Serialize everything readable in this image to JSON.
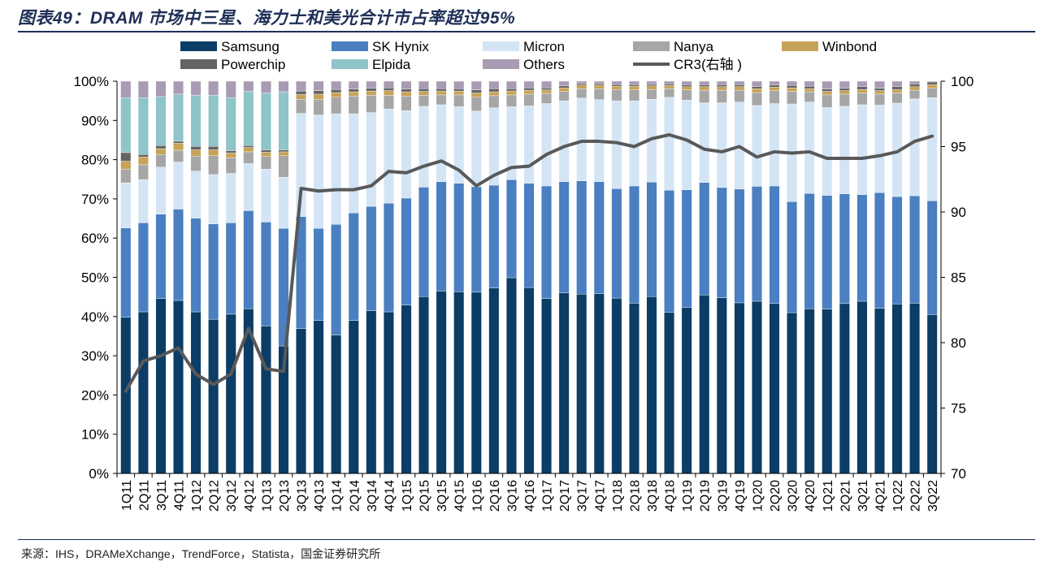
{
  "title": "图表49：DRAM 市场中三星、海力士和美光合计市占率超过95%",
  "source": "来源：IHS，DRAMeXchange，TrendForce，Statista，国金证券研究所",
  "colors": {
    "Samsung": "#0b3d66",
    "SK Hynix": "#4a7fc1",
    "Micron": "#d3e5f5",
    "Nanya": "#a6a6a6",
    "Winbond": "#c7a357",
    "Powerchip": "#646464",
    "Elpida": "#8fc4c8",
    "Others": "#a99bb3",
    "CR3": "#595959"
  },
  "chart_data": {
    "type": "bar",
    "stacked": true,
    "categories": [
      "1Q11",
      "2Q11",
      "3Q11",
      "4Q11",
      "1Q12",
      "2Q12",
      "3Q12",
      "4Q12",
      "1Q13",
      "2Q13",
      "3Q13",
      "4Q13",
      "1Q14",
      "2Q14",
      "3Q14",
      "4Q14",
      "1Q15",
      "2Q15",
      "3Q15",
      "4Q15",
      "1Q16",
      "2Q16",
      "3Q16",
      "4Q16",
      "1Q17",
      "2Q17",
      "3Q17",
      "4Q17",
      "1Q18",
      "2Q18",
      "3Q18",
      "4Q18",
      "1Q19",
      "2Q19",
      "3Q19",
      "4Q19",
      "1Q20",
      "2Q20",
      "3Q20",
      "4Q20",
      "1Q21",
      "2Q21",
      "3Q21",
      "4Q21",
      "1Q22",
      "2Q22",
      "3Q22"
    ],
    "series": [
      {
        "name": "Samsung",
        "axis": "left",
        "values": [
          39.8,
          41.2,
          44.6,
          44.1,
          41.2,
          39.3,
          40.6,
          42.0,
          37.6,
          32.5,
          36.9,
          39.0,
          35.3,
          39.0,
          41.5,
          41.2,
          42.9,
          45.1,
          46.5,
          46.3,
          46.2,
          47.3,
          49.9,
          47.4,
          44.6,
          46.0,
          45.7,
          45.8,
          44.7,
          43.4,
          45.1,
          41.1,
          42.3,
          45.5,
          44.8,
          43.5,
          43.9,
          43.3,
          41.0,
          42.0,
          41.9,
          43.3,
          43.9,
          42.1,
          43.2,
          43.4,
          40.5
        ]
      },
      {
        "name": "SK Hynix",
        "axis": "left",
        "values": [
          22.8,
          22.7,
          21.5,
          23.3,
          23.9,
          24.3,
          23.3,
          25.0,
          26.5,
          30.0,
          28.6,
          23.5,
          28.2,
          27.4,
          26.6,
          27.7,
          27.3,
          27.9,
          27.9,
          27.7,
          26.9,
          26.2,
          25.0,
          26.6,
          28.7,
          28.4,
          28.9,
          28.6,
          27.9,
          29.9,
          29.2,
          31.1,
          30.0,
          28.7,
          28.1,
          29.0,
          29.3,
          30.0,
          28.3,
          29.4,
          29.0,
          28.0,
          27.2,
          29.5,
          27.4,
          27.4,
          29.0
        ]
      },
      {
        "name": "Micron",
        "axis": "left",
        "values": [
          11.5,
          11.0,
          12.0,
          12.0,
          12.0,
          12.6,
          12.6,
          12.0,
          13.5,
          13.0,
          26.3,
          28.9,
          28.2,
          25.3,
          23.9,
          24.0,
          22.3,
          20.6,
          19.6,
          19.5,
          19.3,
          19.7,
          18.6,
          19.7,
          21.0,
          20.6,
          21.1,
          20.9,
          22.4,
          21.7,
          21.1,
          23.7,
          22.9,
          20.3,
          21.6,
          22.2,
          20.6,
          21.0,
          24.9,
          23.3,
          22.4,
          22.3,
          22.9,
          22.3,
          23.8,
          24.7,
          26.3
        ]
      },
      {
        "name": "Nanya",
        "axis": "left",
        "values": [
          3.5,
          3.8,
          3.2,
          3.0,
          3.8,
          4.8,
          4.0,
          3.0,
          3.2,
          5.5,
          3.6,
          4.0,
          4.2,
          4.5,
          4.4,
          3.5,
          3.7,
          2.8,
          2.5,
          3.0,
          3.5,
          3.1,
          3.0,
          3.0,
          2.6,
          2.4,
          2.4,
          2.8,
          2.9,
          2.8,
          2.5,
          2.2,
          2.6,
          3.2,
          3.2,
          3.0,
          3.3,
          3.3,
          3.2,
          2.6,
          3.2,
          3.1,
          3.0,
          2.8,
          2.6,
          2.2,
          2.4
        ]
      },
      {
        "name": "Winbond",
        "axis": "left",
        "values": [
          2.0,
          2.0,
          1.5,
          1.8,
          1.6,
          1.5,
          1.2,
          1.1,
          1.1,
          1.0,
          1.2,
          1.3,
          1.2,
          1.1,
          1.1,
          1.2,
          1.1,
          1.0,
          1.0,
          1.0,
          1.1,
          1.0,
          1.0,
          1.0,
          0.9,
          0.9,
          0.9,
          0.9,
          0.8,
          0.9,
          0.9,
          0.8,
          0.8,
          0.9,
          0.9,
          0.9,
          1.0,
          0.9,
          0.9,
          0.8,
          0.9,
          0.9,
          0.9,
          0.9,
          0.9,
          0.9,
          0.9
        ]
      },
      {
        "name": "Powerchip",
        "axis": "left",
        "values": [
          2.2,
          0.6,
          0.8,
          0.5,
          0.9,
          0.9,
          0.6,
          0.5,
          0.6,
          0.5,
          0.9,
          0.9,
          0.8,
          0.7,
          0.7,
          0.7,
          0.7,
          0.7,
          0.6,
          0.6,
          0.8,
          0.8,
          0.6,
          0.6,
          0.5,
          0.5,
          0.4,
          0.4,
          0.4,
          0.4,
          0.4,
          0.4,
          0.5,
          0.5,
          0.5,
          0.5,
          0.5,
          0.5,
          0.6,
          0.6,
          0.6,
          0.6,
          0.7,
          0.6,
          0.7,
          0.7,
          0.7
        ]
      },
      {
        "name": "Elpida",
        "axis": "left",
        "values": [
          14.0,
          14.5,
          12.5,
          12.0,
          13.0,
          13.0,
          13.5,
          13.8,
          14.5,
          14.8,
          0,
          0,
          0,
          0,
          0,
          0,
          0,
          0,
          0,
          0,
          0,
          0,
          0,
          0,
          0,
          0,
          0,
          0,
          0,
          0,
          0,
          0,
          0,
          0,
          0,
          0,
          0,
          0,
          0,
          0,
          0,
          0,
          0,
          0,
          0,
          0,
          0
        ]
      },
      {
        "name": "Others",
        "axis": "left",
        "values": [
          4.2,
          4.2,
          3.9,
          3.3,
          3.6,
          3.6,
          4.2,
          2.6,
          3.0,
          2.7,
          2.5,
          2.4,
          2.1,
          2.0,
          1.8,
          1.7,
          2.0,
          1.9,
          1.9,
          1.9,
          2.2,
          1.9,
          1.9,
          1.7,
          1.7,
          1.2,
          0.6,
          0.6,
          0.9,
          0.9,
          0.8,
          0.7,
          0.9,
          0.9,
          0.9,
          0.9,
          1.4,
          1.0,
          1.1,
          1.3,
          2.0,
          1.8,
          1.4,
          1.8,
          1.4,
          0.7,
          0.2
        ]
      },
      {
        "name": "CR3(右轴 )",
        "axis": "right",
        "type": "line",
        "values": [
          76.3,
          78.6,
          79.0,
          79.6,
          77.6,
          76.8,
          77.6,
          81.1,
          78.0,
          77.8,
          91.8,
          91.6,
          91.7,
          91.7,
          92.0,
          93.1,
          93.0,
          93.5,
          93.9,
          93.2,
          92.0,
          92.8,
          93.4,
          93.5,
          94.4,
          95.0,
          95.4,
          95.4,
          95.3,
          95.0,
          95.6,
          95.9,
          95.5,
          94.8,
          94.6,
          95.0,
          94.2,
          94.6,
          94.5,
          94.6,
          94.1,
          94.1,
          94.1,
          94.3,
          94.6,
          95.4,
          95.8
        ]
      }
    ],
    "legend": [
      "Samsung",
      "SK Hynix",
      "Micron",
      "Nanya",
      "Winbond",
      "Powerchip",
      "Elpida",
      "Others",
      "CR3(右轴 )"
    ],
    "legend_position": "top",
    "y_left": {
      "min": 0,
      "max": 100,
      "ticks": [
        "0%",
        "10%",
        "20%",
        "30%",
        "40%",
        "50%",
        "60%",
        "70%",
        "80%",
        "90%",
        "100%"
      ]
    },
    "y_right": {
      "min": 70,
      "max": 100,
      "ticks": [
        "70",
        "75",
        "80",
        "85",
        "90",
        "95",
        "100"
      ]
    },
    "grid": false
  }
}
